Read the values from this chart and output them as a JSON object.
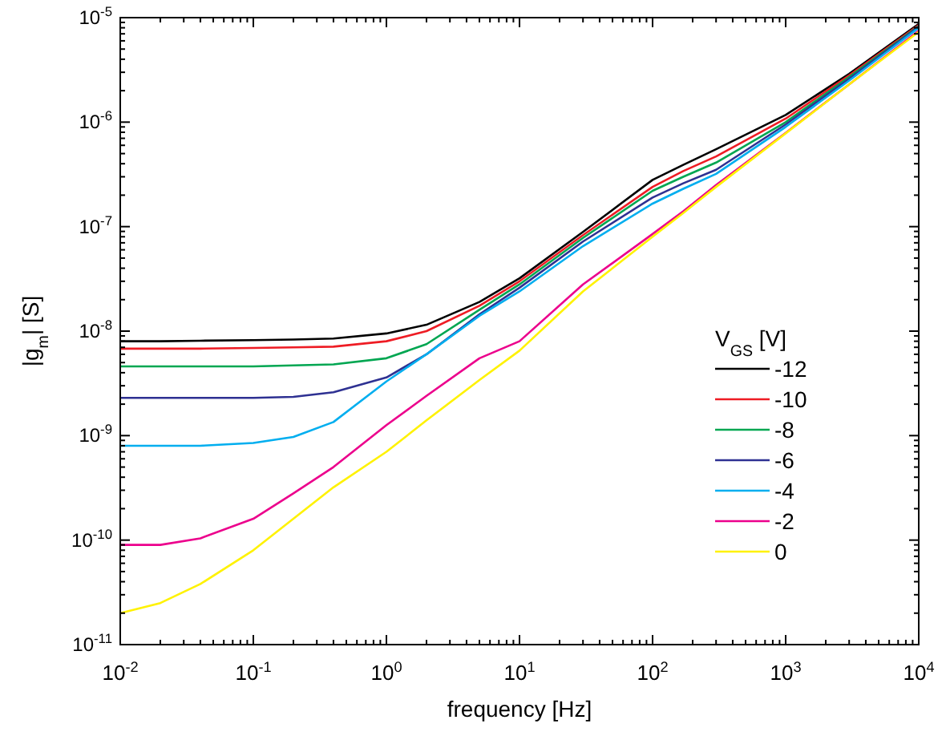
{
  "chart_data": {
    "type": "line",
    "xlabel": "frequency [Hz]",
    "ylabel": "|g$_{m}$| [S]",
    "legend_title": "V$_{GS}$ [V]",
    "log": "xy",
    "legend": "right",
    "grid": false,
    "marker": "none",
    "line_style": "solid",
    "xlim": [
      0.01,
      10000
    ],
    "ylim": [
      1e-11,
      1e-05
    ],
    "xticks": [
      {
        "value": 0.01,
        "label": "10$^{-2}$"
      },
      {
        "value": 0.1,
        "label": "10$^{-1}$"
      },
      {
        "value": 1,
        "label": "10$^{0}$"
      },
      {
        "value": 10,
        "label": "10$^{1}$"
      },
      {
        "value": 100,
        "label": "10$^{2}$"
      },
      {
        "value": 1000,
        "label": "10$^{3}$"
      },
      {
        "value": 10000,
        "label": "10$^{4}$"
      }
    ],
    "yticks": [
      {
        "value": 1e-11,
        "label": "10$^{-11}$"
      },
      {
        "value": 1e-10,
        "label": "10$^{-10}$"
      },
      {
        "value": 1e-09,
        "label": "10$^{-9}$"
      },
      {
        "value": 1e-08,
        "label": "10$^{-8}$"
      },
      {
        "value": 1e-07,
        "label": "10$^{-7}$"
      },
      {
        "value": 1e-06,
        "label": "10$^{-6}$"
      },
      {
        "value": 1e-05,
        "label": "10$^{-5}$"
      }
    ],
    "x": [
      0.01,
      0.02,
      0.04,
      0.1,
      0.2,
      0.4,
      1,
      2,
      5,
      10,
      30,
      100,
      170,
      300,
      1000,
      3000,
      10000
    ],
    "series": [
      {
        "name": "-12",
        "color": "#000000",
        "values": [
          8e-09,
          8e-09,
          8.1e-09,
          8.2e-09,
          8.3e-09,
          8.5e-09,
          9.5e-09,
          1.15e-08,
          1.9e-08,
          3.2e-08,
          8.9e-08,
          2.8e-07,
          3.9e-07,
          5.5e-07,
          1.17e-06,
          2.9e-06,
          8.7e-06
        ]
      },
      {
        "name": "-10",
        "color": "#ee1c24",
        "values": [
          6.8e-09,
          6.8e-09,
          6.8e-09,
          6.9e-09,
          7e-09,
          7.1e-09,
          8e-09,
          1e-08,
          1.75e-08,
          3e-08,
          8.3e-08,
          2.4e-07,
          3.4e-07,
          4.7e-07,
          1.08e-06,
          2.8e-06,
          8.5e-06
        ]
      },
      {
        "name": "-8",
        "color": "#00a651",
        "values": [
          4.6e-09,
          4.6e-09,
          4.6e-09,
          4.6e-09,
          4.7e-09,
          4.8e-09,
          5.5e-09,
          7.5e-09,
          1.6e-08,
          2.8e-08,
          7.8e-08,
          2.2e-07,
          3e-07,
          4.1e-07,
          1e-06,
          2.7e-06,
          8.3e-06
        ]
      },
      {
        "name": "-6",
        "color": "#2e3192",
        "values": [
          2.3e-09,
          2.3e-09,
          2.3e-09,
          2.3e-09,
          2.35e-09,
          2.6e-09,
          3.6e-09,
          6e-09,
          1.45e-08,
          2.6e-08,
          7.2e-08,
          1.9e-07,
          2.6e-07,
          3.5e-07,
          9.5e-07,
          2.6e-06,
          8.2e-06
        ]
      },
      {
        "name": "-4",
        "color": "#00aeef",
        "values": [
          8e-10,
          8e-10,
          8e-10,
          8.5e-10,
          9.7e-10,
          1.35e-09,
          3.3e-09,
          6e-09,
          1.4e-08,
          2.4e-08,
          6.5e-08,
          1.66e-07,
          2.3e-07,
          3.2e-07,
          9e-07,
          2.5e-06,
          8e-06
        ]
      },
      {
        "name": "-2",
        "color": "#ec008c",
        "values": [
          9e-11,
          9e-11,
          1.04e-10,
          1.6e-10,
          2.8e-10,
          5e-10,
          1.26e-09,
          2.4e-09,
          5.5e-09,
          8e-09,
          2.8e-08,
          8.5e-08,
          1.4e-07,
          2.5e-07,
          7.9e-07,
          2.3e-06,
          7.5e-06
        ]
      },
      {
        "name": "0",
        "color": "#fff200",
        "values": [
          2e-11,
          2.5e-11,
          3.8e-11,
          8e-11,
          1.6e-10,
          3.2e-10,
          7e-10,
          1.4e-09,
          3.4e-09,
          6.5e-09,
          2.4e-08,
          8e-08,
          1.35e-07,
          2.4e-07,
          7.8e-07,
          2.3e-06,
          7.3e-06
        ]
      }
    ]
  }
}
